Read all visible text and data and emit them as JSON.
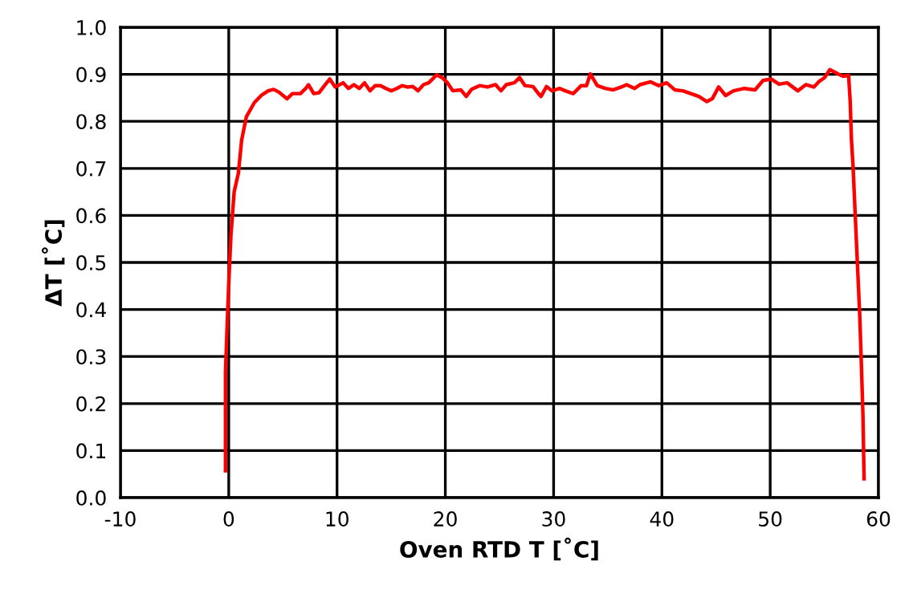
{
  "chart_data": {
    "type": "line",
    "xlabel": "Oven RTD T [˚C]",
    "ylabel": "ΔT [˚C]",
    "series": [
      {
        "color": "#ff0000",
        "x": [
          -0.3,
          -0.3,
          -0.15,
          0,
          0.2,
          0.5,
          0.89,
          1.19,
          1.63,
          2.37,
          3.0,
          3.65,
          4.15,
          4.64,
          5.38,
          5.88,
          6.62,
          7.11,
          7.36,
          7.85,
          8.35,
          8.84,
          9.33,
          9.83,
          10.57,
          11.06,
          11.56,
          12.05,
          12.54,
          13.04,
          13.53,
          14.02,
          14.52,
          15.01,
          15.51,
          16.0,
          16.49,
          16.99,
          17.48,
          17.98,
          18.47,
          19.21,
          19.7,
          20.2,
          20.69,
          21.43,
          21.93,
          22.42,
          23.16,
          23.9,
          24.64,
          25.14,
          25.63,
          26.37,
          26.86,
          27.36,
          28.1,
          28.6,
          28.84,
          29.34,
          29.83,
          30.57,
          31.07,
          31.81,
          32.55,
          33.04,
          33.39,
          34.03,
          34.77,
          35.51,
          36.25,
          36.74,
          37.48,
          37.98,
          38.96,
          39.71,
          40.44,
          41.19,
          41.93,
          42.67,
          43.41,
          44.15,
          44.65,
          45.24,
          45.88,
          46.62,
          47.61,
          48.6,
          49.34,
          50.08,
          50.82,
          51.56,
          52.55,
          53.29,
          54.03,
          54.52,
          55.02,
          55.51,
          56.25,
          56.74,
          57.24,
          57.39,
          57.5,
          57.65,
          57.87,
          58.07,
          58.27,
          58.42,
          58.57,
          58.67
        ],
        "values": [
          0.057,
          0.267,
          0.364,
          0.455,
          0.557,
          0.65,
          0.69,
          0.76,
          0.81,
          0.84,
          0.855,
          0.865,
          0.868,
          0.862,
          0.848,
          0.859,
          0.859,
          0.87,
          0.878,
          0.859,
          0.861,
          0.876,
          0.89,
          0.873,
          0.882,
          0.87,
          0.878,
          0.87,
          0.882,
          0.865,
          0.876,
          0.876,
          0.87,
          0.865,
          0.87,
          0.876,
          0.873,
          0.874,
          0.865,
          0.878,
          0.882,
          0.899,
          0.893,
          0.882,
          0.865,
          0.867,
          0.853,
          0.868,
          0.876,
          0.873,
          0.878,
          0.865,
          0.878,
          0.882,
          0.893,
          0.876,
          0.874,
          0.859,
          0.853,
          0.874,
          0.865,
          0.87,
          0.865,
          0.859,
          0.876,
          0.876,
          0.901,
          0.876,
          0.87,
          0.867,
          0.873,
          0.878,
          0.87,
          0.878,
          0.884,
          0.876,
          0.882,
          0.867,
          0.865,
          0.859,
          0.853,
          0.842,
          0.848,
          0.873,
          0.855,
          0.865,
          0.87,
          0.867,
          0.887,
          0.89,
          0.879,
          0.882,
          0.865,
          0.878,
          0.873,
          0.885,
          0.893,
          0.91,
          0.901,
          0.896,
          0.898,
          0.842,
          0.762,
          0.705,
          0.592,
          0.489,
          0.387,
          0.284,
          0.171,
          0.04
        ]
      }
    ],
    "xlim": [
      -10,
      60
    ],
    "xticks": [
      -10,
      0,
      10,
      20,
      30,
      40,
      50,
      60
    ],
    "ylim": [
      0,
      1
    ],
    "yticks": [
      {
        "value": 0,
        "label": "0.0"
      },
      {
        "value": 0.1,
        "label": "0.1"
      },
      {
        "value": 0.2,
        "label": "0.2"
      },
      {
        "value": 0.3,
        "label": "0.3"
      },
      {
        "value": 0.4,
        "label": "0.4"
      },
      {
        "value": 0.5,
        "label": "0.5"
      },
      {
        "value": 0.6,
        "label": "0.6"
      },
      {
        "value": 0.7,
        "label": "0.7"
      },
      {
        "value": 0.8,
        "label": "0.8"
      },
      {
        "value": 0.9,
        "label": "0.9"
      },
      {
        "value": 1,
        "label": "1.0"
      }
    ],
    "grid": true,
    "legend": false,
    "marker": "none",
    "line_style": "solid"
  }
}
